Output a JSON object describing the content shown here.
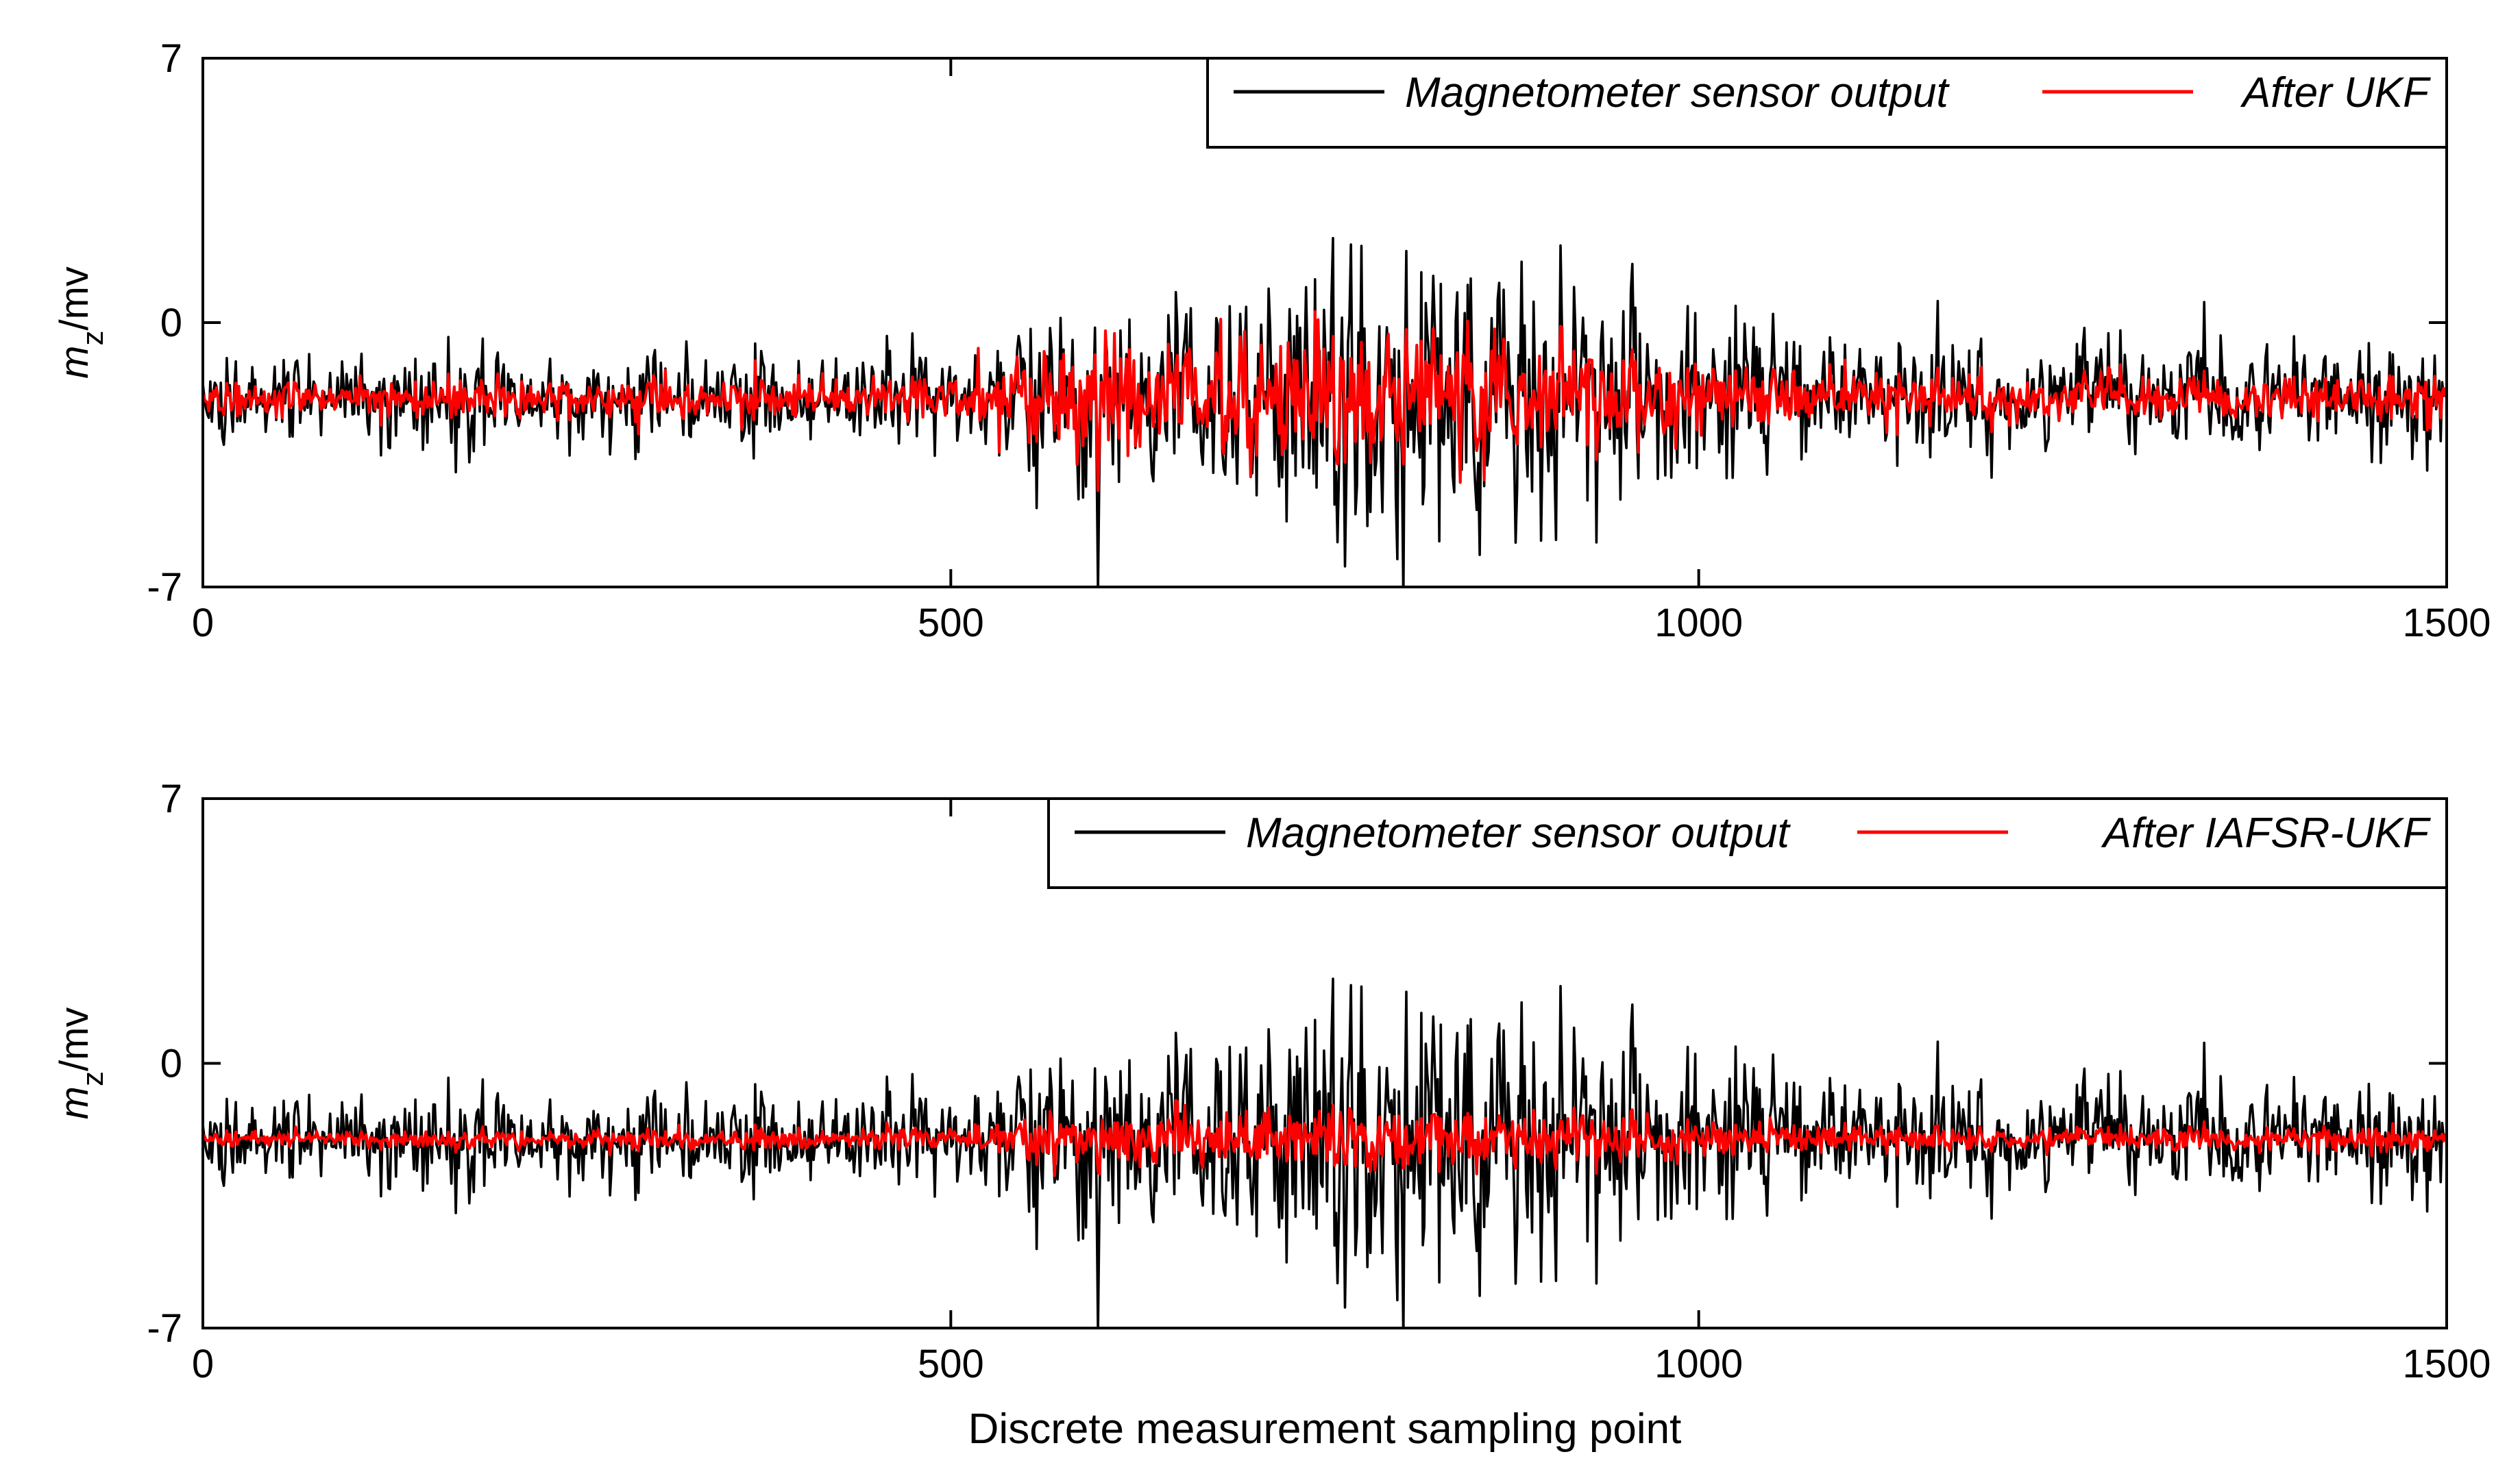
{
  "chart_data": [
    {
      "type": "line",
      "panel": "top",
      "title": "",
      "xlabel": "",
      "ylabel": {
        "main": "m",
        "subscript": "z",
        "unit": "/mv"
      },
      "xlim": [
        0,
        1500
      ],
      "ylim": [
        -7,
        7
      ],
      "xticks": [
        0,
        500,
        1000,
        1500
      ],
      "yticks": [
        7,
        0,
        -7
      ],
      "legend_position": "top-right",
      "series": [
        {
          "name": "Magnetometer sensor output",
          "color": "#000000",
          "baseline": -2.0,
          "noise_envelope": [
            [
              0,
              0.55
            ],
            [
              500,
              0.65
            ],
            [
              560,
              1.2
            ],
            [
              650,
              1.5
            ],
            [
              760,
              1.8
            ],
            [
              830,
              1.7
            ],
            [
              960,
              1.5
            ],
            [
              1040,
              1.0
            ],
            [
              1120,
              0.75
            ],
            [
              1500,
              0.7
            ]
          ],
          "n_points": 1500
        },
        {
          "name": "After UKF",
          "color": "#ff0000",
          "baseline": -2.0,
          "noise_envelope": [
            [
              0,
              0.35
            ],
            [
              500,
              0.4
            ],
            [
              560,
              1.0
            ],
            [
              650,
              1.3
            ],
            [
              760,
              1.3
            ],
            [
              830,
              1.2
            ],
            [
              960,
              0.9
            ],
            [
              1040,
              0.6
            ],
            [
              1120,
              0.45
            ],
            [
              1500,
              0.45
            ]
          ],
          "n_points": 1500
        }
      ]
    },
    {
      "type": "line",
      "panel": "bottom",
      "title": "",
      "xlabel": "Discrete measurement sampling point",
      "ylabel": {
        "main": "m",
        "subscript": "z",
        "unit": "/mv"
      },
      "xlim": [
        0,
        1500
      ],
      "ylim": [
        -7,
        7
      ],
      "xticks": [
        0,
        500,
        1000,
        1500
      ],
      "yticks": [
        7,
        0,
        -7
      ],
      "legend_position": "top-right",
      "series": [
        {
          "name": "Magnetometer sensor output",
          "color": "#000000",
          "baseline": -2.0,
          "noise_envelope": [
            [
              0,
              0.55
            ],
            [
              500,
              0.65
            ],
            [
              560,
              1.2
            ],
            [
              650,
              1.5
            ],
            [
              760,
              1.8
            ],
            [
              830,
              1.7
            ],
            [
              960,
              1.5
            ],
            [
              1040,
              1.0
            ],
            [
              1120,
              0.75
            ],
            [
              1500,
              0.7
            ]
          ],
          "n_points": 1500
        },
        {
          "name": "After IAFSR-UKF",
          "color": "#ff0000",
          "baseline": -2.0,
          "noise_envelope": [
            [
              0,
              0.15
            ],
            [
              500,
              0.2
            ],
            [
              560,
              0.5
            ],
            [
              650,
              0.6
            ],
            [
              760,
              0.6
            ],
            [
              830,
              0.55
            ],
            [
              960,
              0.45
            ],
            [
              1040,
              0.3
            ],
            [
              1120,
              0.22
            ],
            [
              1500,
              0.22
            ]
          ],
          "n_points": 1500
        }
      ]
    }
  ]
}
